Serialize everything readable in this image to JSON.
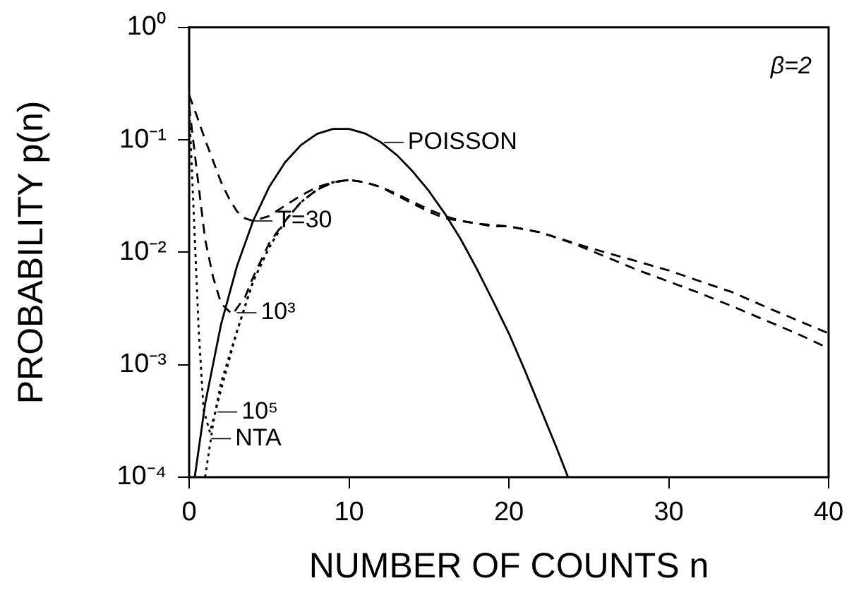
{
  "chart_data": {
    "type": "line",
    "xlabel": "NUMBER OF COUNTS n",
    "ylabel": "PROBABILITY p(n)",
    "log": "y",
    "grid": false,
    "legend": false,
    "marker": "none",
    "xlim": [
      0,
      40
    ],
    "xticks": [
      0,
      10,
      20,
      30,
      40
    ],
    "ylim": [
      0.0001,
      1
    ],
    "yticks": [
      {
        "value": 0.0001,
        "label": "10⁻⁴"
      },
      {
        "value": 0.001,
        "label": "10⁻³"
      },
      {
        "value": 0.01,
        "label": "10⁻²"
      },
      {
        "value": 0.1,
        "label": "10⁻¹"
      },
      {
        "value": 1,
        "label": "10⁰"
      }
    ],
    "series": [
      {
        "color": "#000000",
        "line_style": "solid",
        "x": [
          0.35,
          1,
          2,
          3,
          4,
          5,
          6,
          7,
          8,
          9,
          10,
          11,
          12,
          13,
          14,
          15,
          16,
          17,
          18,
          19,
          20,
          21,
          22,
          23,
          23.7
        ],
        "values": [
          0.0001,
          0.00045,
          0.0023,
          0.0076,
          0.019,
          0.038,
          0.063,
          0.09,
          0.113,
          0.125,
          0.125,
          0.114,
          0.095,
          0.073,
          0.052,
          0.035,
          0.022,
          0.013,
          0.0071,
          0.0037,
          0.0019,
          0.00089,
          0.0004,
          0.00018,
          0.0001
        ]
      },
      {
        "color": "#000000",
        "line_style": "dashed",
        "x": [
          0,
          0.5,
          1,
          1.5,
          2,
          2.5,
          3,
          3.5,
          4,
          5,
          6,
          7,
          8,
          9,
          10,
          11,
          12,
          13,
          14,
          15,
          16,
          17,
          18,
          20,
          22,
          24,
          26,
          28,
          30,
          32,
          34,
          36,
          38,
          40
        ],
        "values": [
          0.25,
          0.16,
          0.1,
          0.065,
          0.042,
          0.03,
          0.023,
          0.02,
          0.019,
          0.021,
          0.026,
          0.032,
          0.038,
          0.042,
          0.044,
          0.042,
          0.038,
          0.033,
          0.028,
          0.024,
          0.021,
          0.019,
          0.018,
          0.017,
          0.015,
          0.012,
          0.0092,
          0.007,
          0.0055,
          0.0043,
          0.0033,
          0.0025,
          0.0019,
          0.0014
        ]
      },
      {
        "color": "#000000",
        "line_style": "dashed",
        "x": [
          0,
          0.5,
          1,
          1.5,
          2,
          2.7,
          3.5,
          4,
          5,
          6,
          7,
          8,
          9,
          10,
          11,
          12,
          13,
          14,
          15,
          16,
          17,
          18,
          19,
          20,
          21,
          22,
          25,
          30,
          32,
          34,
          36,
          38,
          40
        ],
        "values": [
          0.2,
          0.05,
          0.013,
          0.006,
          0.0035,
          0.0028,
          0.004,
          0.006,
          0.012,
          0.019,
          0.028,
          0.036,
          0.042,
          0.044,
          0.042,
          0.038,
          0.032,
          0.027,
          0.023,
          0.02,
          0.019,
          0.018,
          0.017,
          0.017,
          0.016,
          0.015,
          0.011,
          0.0069,
          0.0055,
          0.0044,
          0.0033,
          0.0025,
          0.0019
        ]
      },
      {
        "color": "#000000",
        "line_style": "dotted",
        "x": [
          0,
          0.3,
          0.6,
          0.9,
          1.3,
          2,
          3,
          4,
          5,
          6,
          7,
          8,
          9,
          10
        ],
        "values": [
          0.2,
          0.02,
          0.002,
          0.0004,
          0.00025,
          0.0006,
          0.002,
          0.0055,
          0.011,
          0.019,
          0.028,
          0.036,
          0.042,
          0.044
        ]
      },
      {
        "color": "#000000",
        "line_style": "dotted",
        "x": [
          1,
          1.5,
          2,
          3,
          4,
          5,
          6,
          7,
          8,
          9,
          10
        ],
        "values": [
          0.0001,
          0.0003,
          0.0007,
          0.002,
          0.0055,
          0.011,
          0.019,
          0.028,
          0.036,
          0.042,
          0.044
        ]
      }
    ],
    "annotations": [
      "β=2",
      {
        "text": "POISSON",
        "x": 12,
        "y": 0.095
      },
      {
        "text": "T=30",
        "x": 3.8,
        "y": 0.019
      },
      {
        "text": "10³",
        "x": 2.8,
        "y": 0.0029
      },
      {
        "text": "10⁵",
        "x": 1.6,
        "y": 0.00038
      },
      {
        "text": "NTA",
        "x": 1.2,
        "y": 0.00022
      }
    ]
  }
}
